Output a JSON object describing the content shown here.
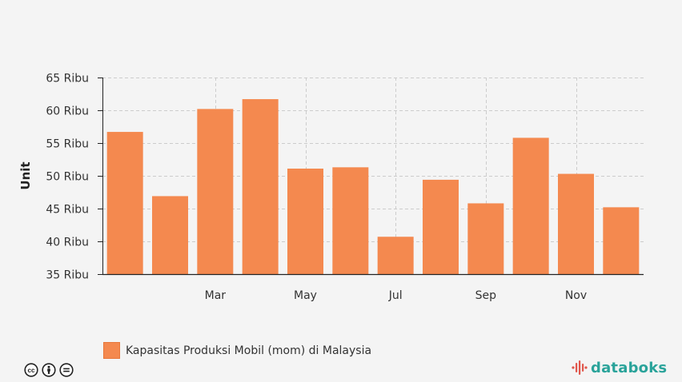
{
  "chart_data": {
    "type": "bar",
    "ylabel": "Unit",
    "ylim": [
      35000,
      65000
    ],
    "yticks": [
      {
        "value": 35000,
        "label": "35 Ribu"
      },
      {
        "value": 40000,
        "label": "40 Ribu"
      },
      {
        "value": 45000,
        "label": "45 Ribu"
      },
      {
        "value": 50000,
        "label": "50 Ribu"
      },
      {
        "value": 55000,
        "label": "55 Ribu"
      },
      {
        "value": 60000,
        "label": "60 Ribu"
      },
      {
        "value": 65000,
        "label": "65 Ribu"
      }
    ],
    "xticks": [
      {
        "index": 2,
        "label": "Mar"
      },
      {
        "index": 4,
        "label": "May"
      },
      {
        "index": 6,
        "label": "Jul"
      },
      {
        "index": 8,
        "label": "Sep"
      },
      {
        "index": 10,
        "label": "Nov"
      }
    ],
    "series": [
      {
        "name": "Kapasitas Produksi Mobil (mom) di Malaysia",
        "color": "#f4894f",
        "values": [
          56700,
          46900,
          60200,
          61700,
          51100,
          51300,
          40700,
          49400,
          45800,
          55800,
          50300,
          45200
        ]
      }
    ],
    "grid": true,
    "legend_position": "bottom-left"
  },
  "footer": {
    "license_icons": [
      "cc-icon",
      "by-icon",
      "nd-icon"
    ],
    "brand": "databoks",
    "brand_color": "#2aa39a",
    "brand_logo_color": "#e0564b"
  }
}
